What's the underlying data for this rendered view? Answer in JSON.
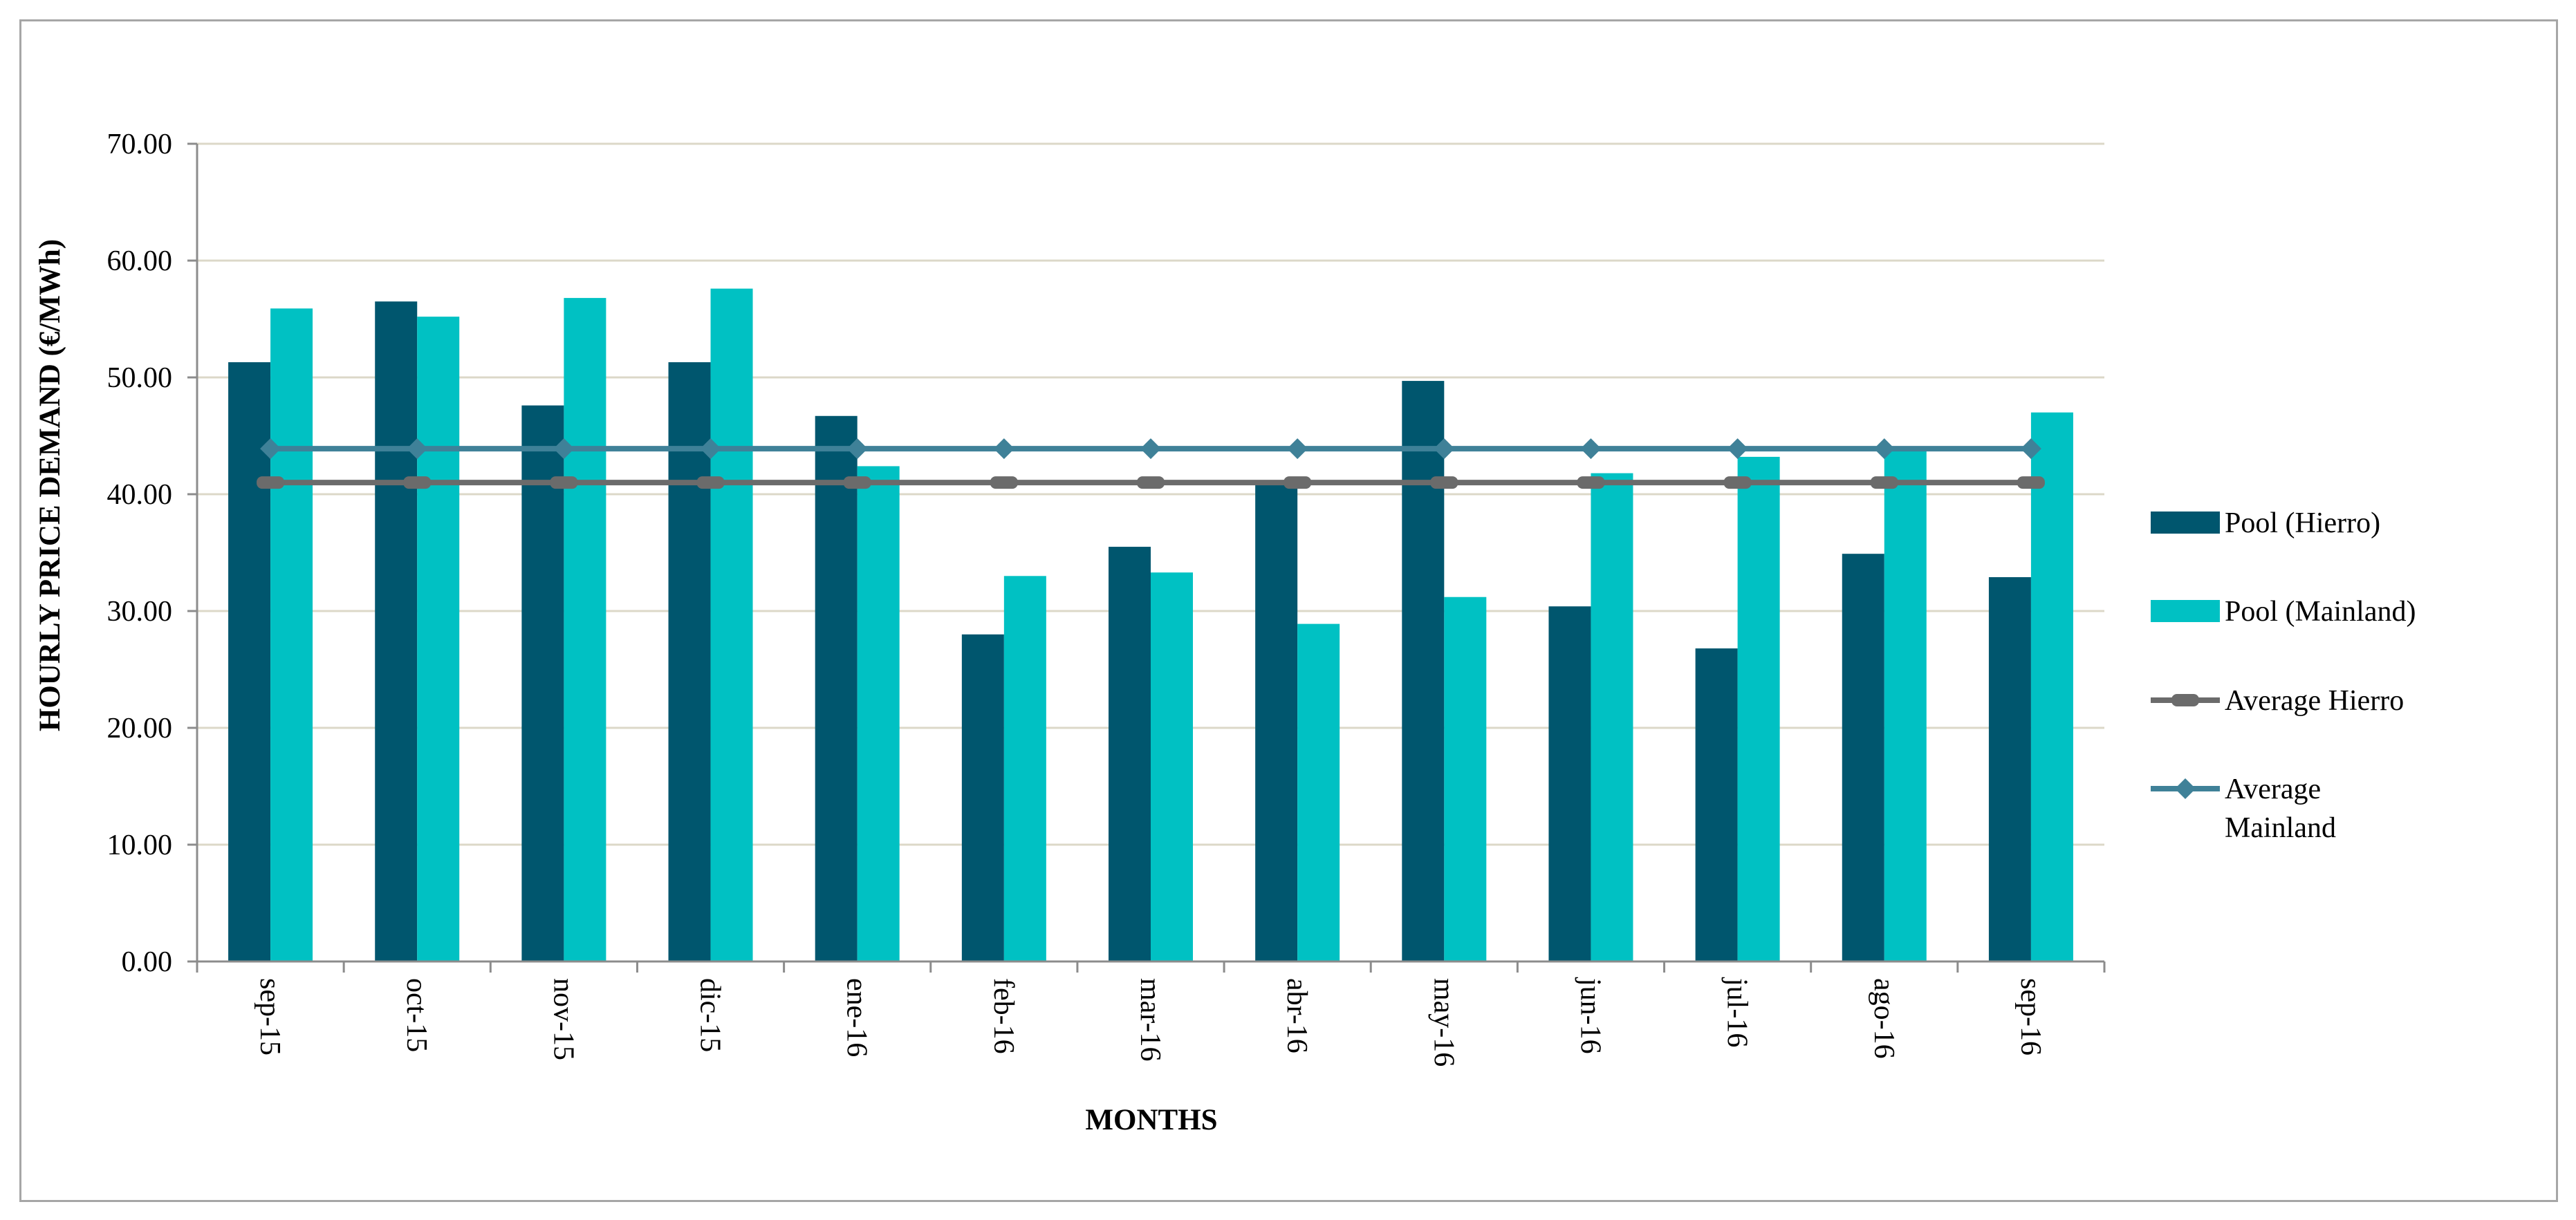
{
  "chart_data": {
    "type": "bar",
    "title": "",
    "xlabel": "MONTHS",
    "ylabel": "HOURLY PRICE DEMAND (€/MWh)",
    "ylim": [
      0,
      70
    ],
    "yticks": [
      "0.00",
      "10.00",
      "20.00",
      "30.00",
      "40.00",
      "50.00",
      "60.00",
      "70.00"
    ],
    "grid": true,
    "legend_position": "right",
    "categories": [
      "sep-15",
      "oct-15",
      "nov-15",
      "dic-15",
      "ene-16",
      "feb-16",
      "mar-16",
      "abr-16",
      "may-16",
      "jun-16",
      "jul-16",
      "ago-16",
      "sep-16"
    ],
    "series": [
      {
        "name": "Pool (Hierro)",
        "kind": "bar",
        "color": "#00566e",
        "values": [
          51.3,
          56.5,
          47.6,
          51.3,
          46.7,
          28.0,
          35.5,
          41.0,
          49.7,
          30.4,
          26.8,
          34.9,
          32.9
        ]
      },
      {
        "name": "Pool (Mainland)",
        "kind": "bar",
        "color": "#00c1c3",
        "values": [
          55.9,
          55.2,
          56.8,
          57.6,
          42.4,
          33.0,
          33.3,
          28.9,
          31.2,
          41.8,
          43.2,
          43.8,
          47.0
        ]
      },
      {
        "name": "Average Hierro",
        "kind": "line",
        "marker": "square",
        "color": "#6b6b6b",
        "values": [
          41.0,
          41.0,
          41.0,
          41.0,
          41.0,
          41.0,
          41.0,
          41.0,
          41.0,
          41.0,
          41.0,
          41.0,
          41.0
        ]
      },
      {
        "name": "Average Mainland",
        "kind": "line",
        "marker": "diamond",
        "color": "#3f8198",
        "values": [
          43.9,
          43.9,
          43.9,
          43.9,
          43.9,
          43.9,
          43.9,
          43.9,
          43.9,
          43.9,
          43.9,
          43.9,
          43.9
        ]
      }
    ],
    "legend_labels": [
      [
        "Pool (Hierro)"
      ],
      [
        "Pool (Mainland)"
      ],
      [
        "Average Hierro"
      ],
      [
        "Average",
        "Mainland"
      ]
    ]
  }
}
